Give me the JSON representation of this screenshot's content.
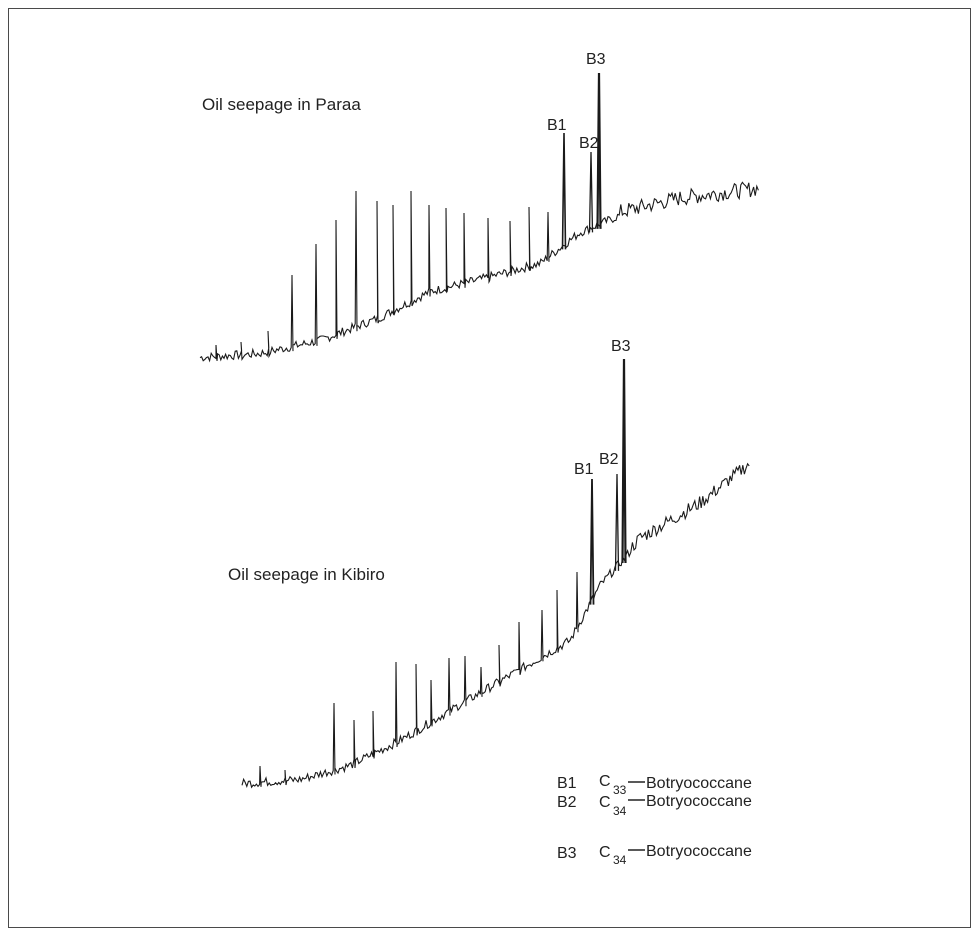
{
  "chart_data": [
    {
      "type": "line",
      "title": "Oil seepage in Paraa",
      "peak_labels": [
        "B1",
        "B2",
        "B3"
      ]
    },
    {
      "type": "line",
      "title": "Oil seepage in Kibiro",
      "peak_labels": [
        "B1",
        "B2",
        "B3"
      ]
    }
  ],
  "legend": [
    {
      "code": "B1",
      "prefix": "C",
      "carbon": "33",
      "name": "Botryococcane"
    },
    {
      "code": "B2",
      "prefix": "C",
      "carbon": "34",
      "name": "Botryococcane"
    },
    {
      "code": "B3",
      "prefix": "C",
      "carbon": "34",
      "name": "Botryococcane"
    }
  ],
  "colors": {
    "trace": "#1a1a1a",
    "frame": "#4a4a4a"
  }
}
